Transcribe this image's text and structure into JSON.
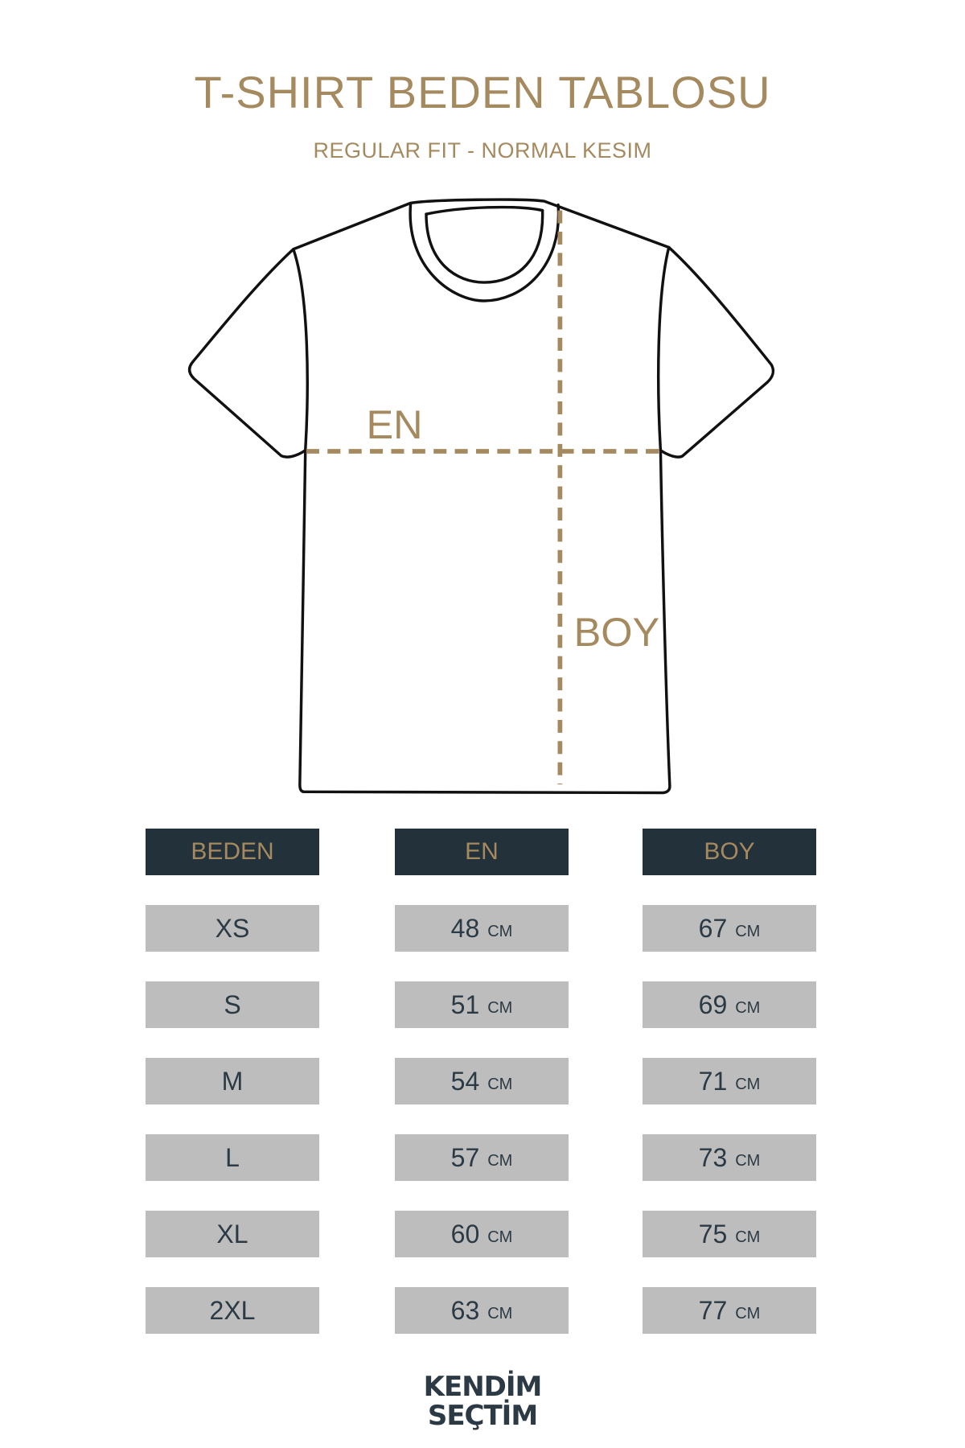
{
  "header": {
    "title": "T-SHIRT BEDEN TABLOSU",
    "subtitle": "REGULAR FIT - NORMAL KESIM"
  },
  "diagram": {
    "width_label": "EN",
    "length_label": "BOY"
  },
  "colors": {
    "accent": "#a58a5f",
    "header_bg": "#23313b",
    "cell_bg": "#bdbdbd",
    "text": "#2b3a44"
  },
  "table": {
    "columns": [
      "BEDEN",
      "EN",
      "BOY"
    ],
    "unit": "CM",
    "rows": [
      {
        "size": "XS",
        "en": "48",
        "boy": "67"
      },
      {
        "size": "S",
        "en": "51",
        "boy": "69"
      },
      {
        "size": "M",
        "en": "54",
        "boy": "71"
      },
      {
        "size": "L",
        "en": "57",
        "boy": "73"
      },
      {
        "size": "XL",
        "en": "60",
        "boy": "75"
      },
      {
        "size": "2XL",
        "en": "63",
        "boy": "77"
      }
    ]
  },
  "logo": {
    "line1": "KENDİM",
    "line2": "SEÇTİM"
  }
}
